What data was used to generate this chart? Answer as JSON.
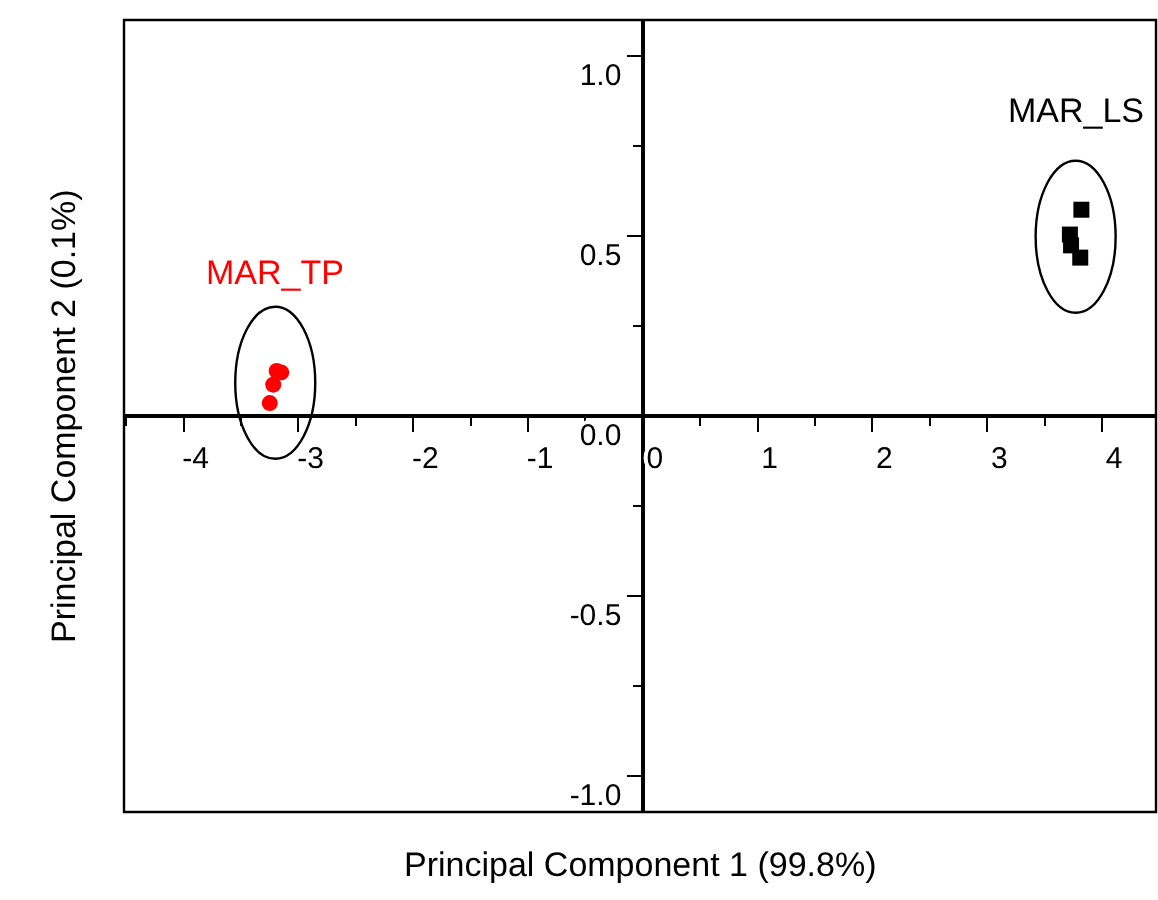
{
  "chart_data": {
    "type": "scatter",
    "xlabel": "Principal Component 1 (99.8%)",
    "ylabel": "Principal Component 2 (0.1%)",
    "xlim": [
      -4.52,
      4.47
    ],
    "ylim": [
      -1.1,
      1.1
    ],
    "xticks": [
      -4,
      -3,
      -2,
      -1,
      0,
      1,
      2,
      3,
      4
    ],
    "yticks": [
      {
        "value": -1,
        "label": "-1.0"
      },
      {
        "value": -0.5,
        "label": "-0.5"
      },
      {
        "value": 0,
        "label": "0.0"
      },
      {
        "value": 0.5,
        "label": "0.5"
      },
      {
        "value": 1,
        "label": "1.0"
      }
    ],
    "grid": false,
    "legend": false,
    "series": [
      {
        "name": "MAR_TP",
        "color": "#ff0000",
        "marker": "circle",
        "x": [
          -3.19,
          -3.15,
          -3.22,
          -3.25
        ],
        "values": [
          0.125,
          0.121,
          0.087,
          0.036
        ]
      },
      {
        "name": "MAR_LS",
        "color": "#000000",
        "marker": "square",
        "x": [
          3.82,
          3.72,
          3.73,
          3.81
        ],
        "values": [
          0.573,
          0.504,
          0.474,
          0.44
        ]
      }
    ]
  }
}
